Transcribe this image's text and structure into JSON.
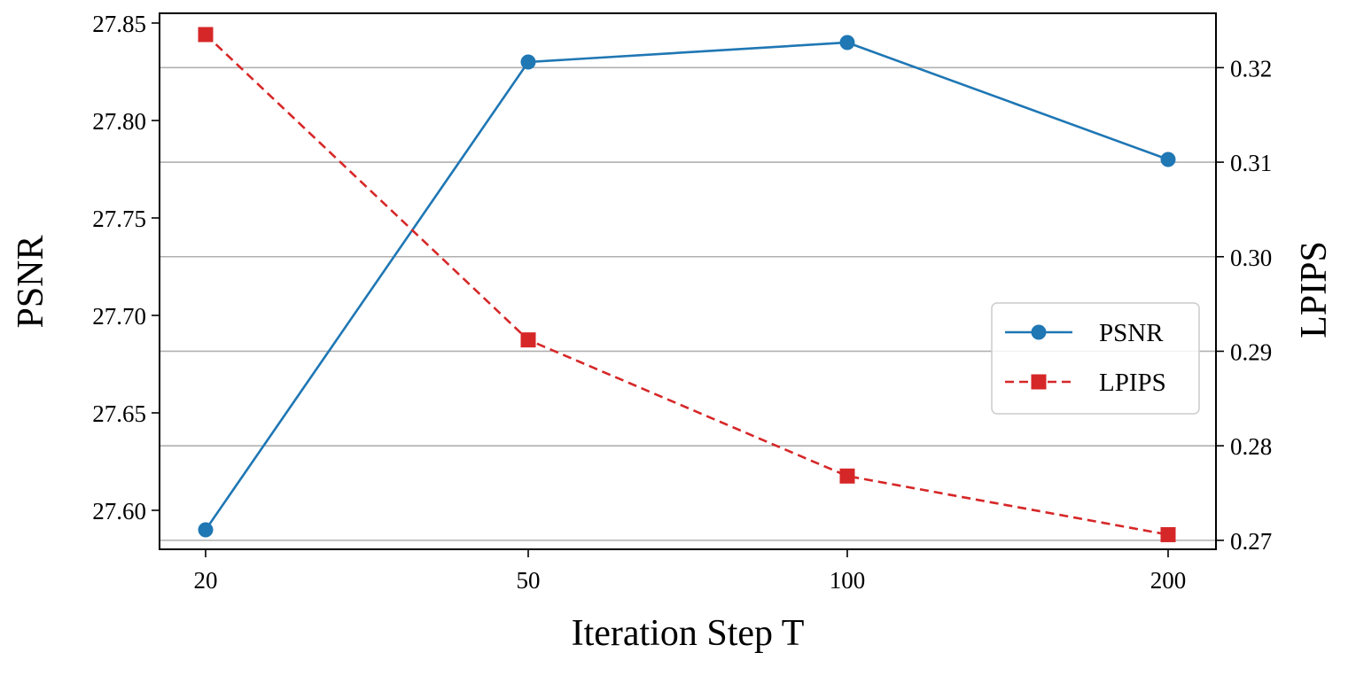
{
  "chart_data": {
    "type": "line",
    "categories": [
      "20",
      "50",
      "100",
      "200"
    ],
    "xlabel": "Iteration Step T",
    "ylabel_left": "PSNR",
    "ylabel_right": "LPIPS",
    "y_left": {
      "range": [
        27.58,
        27.855
      ],
      "ticks": [
        "27.60",
        "27.65",
        "27.70",
        "27.75",
        "27.80",
        "27.85"
      ]
    },
    "y_right": {
      "range": [
        0.26905,
        0.32575
      ],
      "ticks": [
        "0.27",
        "0.28",
        "0.29",
        "0.30",
        "0.31",
        "0.32"
      ]
    },
    "grid": "horizontal, aligned to right axis ticks",
    "legend_position": "center-right",
    "series": [
      {
        "name": "PSNR",
        "axis": "left",
        "values": [
          27.59,
          27.83,
          27.84,
          27.78
        ],
        "color": "#1f77b4",
        "marker": "circle",
        "line": "solid"
      },
      {
        "name": "LPIPS",
        "axis": "right",
        "values": [
          0.3235,
          0.2912,
          0.2768,
          0.2706
        ],
        "color": "#d62728",
        "marker": "square",
        "line": "dashed"
      }
    ]
  }
}
